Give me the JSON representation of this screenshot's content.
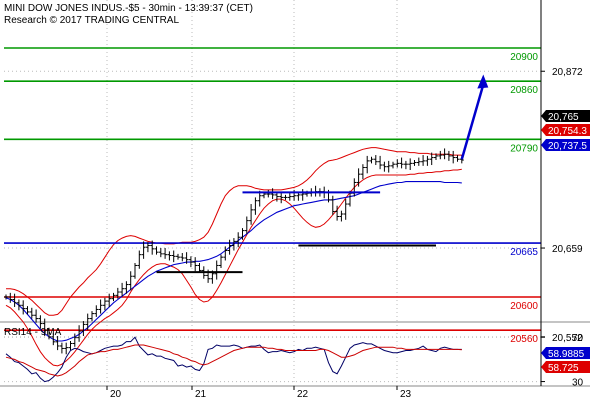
{
  "header": {
    "line1": "MINI DOW JONES INDUS.-$5 - 30min - 13:39:37 (CET)",
    "line2": "Research © 2017 TRADING CENTRAL"
  },
  "colors": {
    "resistance": "#009900",
    "pivot": "#0000cc",
    "support": "#dd0000",
    "bollinger": "#dd0000",
    "ma": "#0000cc",
    "price": "#000000",
    "arrow": "#0000cc",
    "rsi": "#000066",
    "rsi_ma": "#cc0000",
    "grid": "#bbbbbb",
    "last_bg": "#000000",
    "red_bg": "#dd0000",
    "blue_bg": "#0000cc"
  },
  "chart_data": [
    {
      "type": "candlestick",
      "ylim": [
        20510,
        20910
      ],
      "x_ticks": [
        "20",
        "21",
        "22",
        "23"
      ],
      "y_ticks": [
        20872,
        20659,
        20552
      ],
      "y_tick_labels": [
        "20,872",
        "20,659",
        "20,552"
      ],
      "levels": [
        {
          "value": 20900,
          "label": "20900",
          "kind": "resistance"
        },
        {
          "value": 20860,
          "label": "20860",
          "kind": "resistance"
        },
        {
          "value": 20790,
          "label": "20790",
          "kind": "resistance"
        },
        {
          "value": 20665,
          "label": "20665",
          "kind": "pivot"
        },
        {
          "value": 20600,
          "label": "20600",
          "kind": "support"
        },
        {
          "value": 20560,
          "label": "20560",
          "kind": "support"
        }
      ],
      "badges": [
        {
          "value": 20765,
          "label": "20,765",
          "kind": "last"
        },
        {
          "value": 20754,
          "label": "20,754.3",
          "kind": "red"
        },
        {
          "value": 20737.5,
          "label": "20,737.5",
          "kind": "blue"
        }
      ],
      "close": [
        20600,
        20597,
        20593,
        20590,
        20586,
        20582,
        20578,
        20574,
        20568,
        20560,
        20552,
        20546,
        20541,
        20538,
        20539,
        20544,
        20551,
        20559,
        20567,
        20574,
        20580,
        20585,
        20590,
        20595,
        20598,
        20602,
        20606,
        20610,
        20615,
        20625,
        20638,
        20651,
        20660,
        20662,
        20658,
        20654,
        20652,
        20651,
        20650,
        20649,
        20648,
        20647,
        20645,
        20642,
        20638,
        20632,
        20626,
        20622,
        20628,
        20638,
        20648,
        20656,
        20662,
        20667,
        20672,
        20680,
        20692,
        20705,
        20716,
        20722,
        20724,
        20724,
        20723,
        20721,
        20720,
        20720,
        20721,
        20722,
        20723,
        20724,
        20725,
        20726,
        20727,
        20727,
        20726,
        20717,
        20703,
        20697,
        20700,
        20712,
        20725,
        20738,
        20748,
        20756,
        20764,
        20766,
        20763,
        20759,
        20757,
        20758,
        20760,
        20761,
        20760,
        20760,
        20761,
        20762,
        20763,
        20764,
        20766,
        20768,
        20770,
        20771,
        20772,
        20770,
        20768,
        20766,
        20765
      ],
      "bb_upper": [
        20610,
        20610,
        20609,
        20607,
        20604,
        20600,
        20596,
        20591,
        20586,
        20581,
        20578,
        20578,
        20579,
        20584,
        20592,
        20600,
        20606,
        20612,
        20617,
        20623,
        20628,
        20633,
        20640,
        20648,
        20656,
        20663,
        20668,
        20671,
        20673,
        20674,
        20673,
        20671,
        20669,
        20667,
        20666,
        20665,
        20665,
        20664,
        20664,
        20664,
        20665,
        20666,
        20666,
        20666,
        20667,
        20669,
        20672,
        20678,
        20688,
        20700,
        20712,
        20722,
        20728,
        20732,
        20734,
        20734,
        20734,
        20733,
        20731,
        20730,
        20729,
        20729,
        20729,
        20729,
        20729,
        20730,
        20731,
        20732,
        20734,
        20737,
        20741,
        20746,
        20752,
        20757,
        20761,
        20764,
        20765,
        20766,
        20768,
        20770,
        20772,
        20774,
        20776,
        20778,
        20779,
        20780,
        20780,
        20779,
        20778,
        20777,
        20776,
        20775,
        20775,
        20775,
        20774,
        20774,
        20773,
        20773,
        20773,
        20772,
        20772,
        20772,
        20772,
        20772,
        20771,
        20771,
        20771
      ],
      "bb_lower": [
        20590,
        20587,
        20582,
        20576,
        20570,
        20562,
        20553,
        20543,
        20534,
        20527,
        20522,
        20518,
        20517,
        20519,
        20523,
        20528,
        20534,
        20541,
        20548,
        20555,
        20561,
        20566,
        20570,
        20574,
        20577,
        20581,
        20585,
        20590,
        20597,
        20606,
        20614,
        20621,
        20627,
        20632,
        20636,
        20639,
        20640,
        20640,
        20638,
        20636,
        20633,
        20628,
        20620,
        20612,
        20603,
        20597,
        20594,
        20595,
        20600,
        20608,
        20617,
        20627,
        20637,
        20647,
        20657,
        20666,
        20675,
        20684,
        20692,
        20700,
        20707,
        20712,
        20716,
        20718,
        20718,
        20716,
        20712,
        20707,
        20701,
        20695,
        20690,
        20686,
        20684,
        20685,
        20688,
        20693,
        20699,
        20705,
        20712,
        20719,
        20726,
        20732,
        20737,
        20741,
        20744,
        20746,
        20747,
        20747,
        20747,
        20747,
        20747,
        20747,
        20747,
        20747,
        20748,
        20748,
        20749,
        20749,
        20750,
        20750,
        20751,
        20751,
        20752,
        20752,
        20753,
        20753,
        20754
      ],
      "ma": [
        20599,
        20597,
        20594,
        20590,
        20585,
        20579,
        20573,
        20567,
        20561,
        20556,
        20552,
        20549,
        20547,
        20547,
        20548,
        20550,
        20552,
        20555,
        20559,
        20563,
        20568,
        20573,
        20578,
        20583,
        20588,
        20593,
        20597,
        20601,
        20605,
        20609,
        20613,
        20617,
        20621,
        20625,
        20628,
        20631,
        20633,
        20635,
        20637,
        20639,
        20640,
        20641,
        20642,
        20642,
        20643,
        20643,
        20644,
        20645,
        20647,
        20649,
        20652,
        20656,
        20660,
        20664,
        20668,
        20672,
        20676,
        20680,
        20685,
        20689,
        20693,
        20696,
        20699,
        20702,
        20704,
        20706,
        20708,
        20710,
        20711,
        20712,
        20713,
        20714,
        20715,
        20716,
        20717,
        20717,
        20717,
        20718,
        20719,
        20720,
        20721,
        20722,
        20724,
        20726,
        20728,
        20730,
        20732,
        20734,
        20735,
        20736,
        20737,
        20738,
        20738,
        20739,
        20739,
        20739,
        20739,
        20739,
        20739,
        20739,
        20739,
        20739,
        20738,
        20738,
        20738,
        20738,
        20737.5
      ],
      "pattern_lines": [
        {
          "from": [
            68,
            20662
          ],
          "to": [
            100,
            20662
          ],
          "color": "#000000"
        },
        {
          "from": [
            35,
            20630
          ],
          "to": [
            55,
            20630
          ],
          "color": "#000000"
        },
        {
          "from": [
            55,
            20726
          ],
          "to": [
            87,
            20726
          ],
          "color": "#0000cc"
        }
      ],
      "forecast_arrow": {
        "from": [
          106,
          20766
        ],
        "to": [
          111,
          20868
        ]
      }
    },
    {
      "type": "line",
      "title": "RSI14 - 9MA",
      "ylim": [
        26,
        81
      ],
      "y_ticks": [
        70,
        30
      ],
      "y_tick_labels": [
        "70",
        "30"
      ],
      "badges": [
        {
          "value": 58.9885,
          "label": "58.9885",
          "kind": "blue"
        },
        {
          "value": 58.725,
          "label": "58.725",
          "kind": "red"
        }
      ],
      "rsi": [
        55,
        52,
        48,
        47,
        44,
        41,
        37,
        38,
        33,
        30,
        31,
        34,
        38,
        43,
        52,
        58,
        60,
        59,
        57,
        56,
        55,
        56,
        58,
        60,
        61,
        62,
        62,
        63,
        66,
        66,
        70,
        62,
        58,
        54,
        55,
        53,
        53,
        51,
        50,
        49,
        44,
        45,
        43,
        44,
        41,
        40,
        46,
        59,
        60,
        63,
        62,
        62,
        62,
        63,
        62,
        60,
        61,
        62,
        62,
        63,
        59,
        56,
        57,
        57,
        58,
        57,
        56,
        57,
        59,
        58,
        60,
        60,
        61,
        60,
        59,
        47,
        39,
        37,
        44,
        52,
        60,
        63,
        64,
        65,
        64,
        64,
        62,
        60,
        58,
        57,
        56,
        56,
        57,
        58,
        58,
        59,
        60,
        62,
        59,
        58,
        57,
        60,
        61,
        60,
        59,
        59,
        59
      ],
      "rsi_ma": [
        52,
        51,
        50,
        48,
        47,
        45,
        43,
        41,
        40,
        39,
        37,
        36,
        35,
        36,
        38,
        41,
        44,
        48,
        51,
        54,
        55,
        56,
        57,
        57,
        58,
        59,
        59,
        60,
        61,
        62,
        63,
        63,
        63,
        62,
        61,
        60,
        59,
        58,
        57,
        55,
        54,
        52,
        51,
        49,
        48,
        46,
        45,
        46,
        48,
        50,
        52,
        54,
        56,
        58,
        59,
        60,
        61,
        61,
        61,
        61,
        61,
        60,
        60,
        59,
        59,
        58,
        58,
        58,
        58,
        58,
        58,
        58,
        58,
        59,
        59,
        58,
        56,
        54,
        52,
        52,
        53,
        54,
        56,
        58,
        59,
        60,
        61,
        61,
        61,
        61,
        61,
        60,
        60,
        59,
        59,
        59,
        59,
        59,
        59,
        59,
        59,
        59,
        59,
        59,
        59,
        59,
        58.725
      ]
    }
  ]
}
